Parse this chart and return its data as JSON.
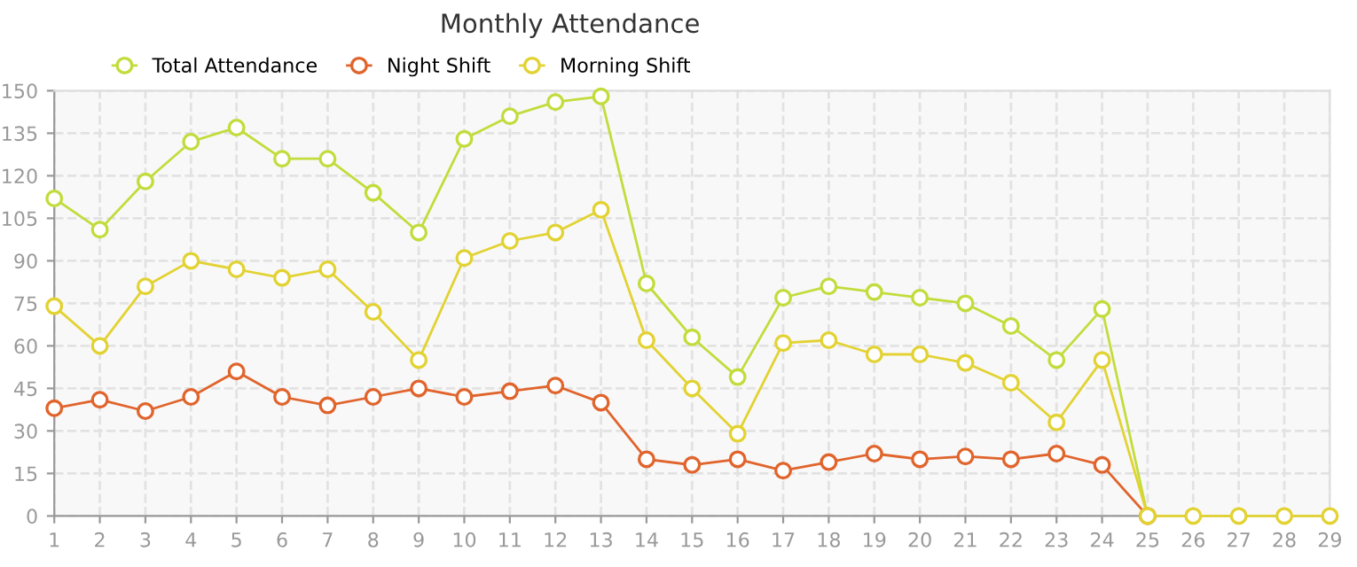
{
  "chart_data": {
    "type": "line",
    "title": "Monthly Attendance",
    "categories": [
      "1",
      "2",
      "3",
      "4",
      "5",
      "6",
      "7",
      "8",
      "9",
      "10",
      "11",
      "12",
      "13",
      "14",
      "15",
      "16",
      "17",
      "18",
      "19",
      "20",
      "21",
      "22",
      "23",
      "24",
      "25",
      "26",
      "27",
      "28",
      "29"
    ],
    "series": [
      {
        "name": "Total Attendance",
        "color": "#c2dc3c",
        "values": [
          112,
          101,
          118,
          132,
          137,
          126,
          126,
          114,
          100,
          133,
          141,
          146,
          148,
          82,
          63,
          49,
          77,
          81,
          79,
          77,
          75,
          67,
          55,
          73,
          0,
          null,
          null,
          null,
          null
        ]
      },
      {
        "name": "Night Shift",
        "color": "#e0642c",
        "values": [
          38,
          41,
          37,
          42,
          51,
          42,
          39,
          42,
          45,
          42,
          44,
          46,
          40,
          20,
          18,
          20,
          16,
          19,
          22,
          20,
          21,
          20,
          22,
          18,
          0,
          null,
          null,
          null,
          null
        ]
      },
      {
        "name": "Morning Shift",
        "color": "#e2d232",
        "values": [
          74,
          60,
          81,
          90,
          87,
          84,
          87,
          72,
          55,
          91,
          97,
          100,
          108,
          62,
          45,
          29,
          61,
          62,
          57,
          57,
          54,
          47,
          33,
          55,
          0,
          0,
          0,
          0,
          0
        ]
      }
    ],
    "ylim": [
      0,
      150
    ],
    "yticks": [
      0,
      15,
      30,
      45,
      60,
      75,
      90,
      105,
      120,
      135,
      150
    ],
    "grid": true,
    "legend": "top left",
    "marker": "circle",
    "line_style": "solid"
  }
}
